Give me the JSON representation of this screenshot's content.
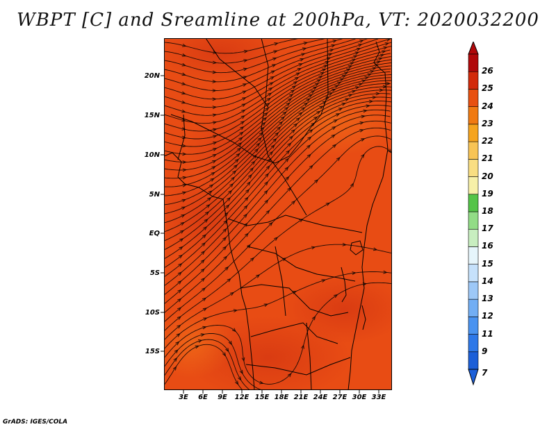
{
  "title": "WBPT [C] and Sreamline at 200hPa, VT: 2020032200",
  "credit": "GrADS: IGES/COLA",
  "map": {
    "field": "Wet-bulb potential temperature",
    "level": "200hPa",
    "valid_time": "2020032200",
    "lat_labels": [
      {
        "label": "20N",
        "value": 20
      },
      {
        "label": "15N",
        "value": 15
      },
      {
        "label": "10N",
        "value": 10
      },
      {
        "label": "5N",
        "value": 5
      },
      {
        "label": "EQ",
        "value": 0
      },
      {
        "label": "5S",
        "value": -5
      },
      {
        "label": "10S",
        "value": -10
      },
      {
        "label": "15S",
        "value": -15
      }
    ],
    "lon_labels": [
      {
        "label": "3E",
        "value": 3
      },
      {
        "label": "6E",
        "value": 6
      },
      {
        "label": "9E",
        "value": 9
      },
      {
        "label": "12E",
        "value": 12
      },
      {
        "label": "15E",
        "value": 15
      },
      {
        "label": "18E",
        "value": 18
      },
      {
        "label": "21E",
        "value": 21
      },
      {
        "label": "24E",
        "value": 24
      },
      {
        "label": "27E",
        "value": 27
      },
      {
        "label": "30E",
        "value": 30
      },
      {
        "label": "33E",
        "value": 33
      }
    ],
    "lat_range": [
      -20,
      24.5
    ],
    "lon_range": [
      0,
      35
    ]
  },
  "colorbar": {
    "labels": [
      "7",
      "9",
      "11",
      "12",
      "13",
      "14",
      "15",
      "16",
      "17",
      "18",
      "19",
      "20",
      "21",
      "22",
      "23",
      "24",
      "25",
      "26"
    ],
    "colors": [
      "#1c5fd8",
      "#2e78e8",
      "#4a93f0",
      "#72aef4",
      "#9dc8f7",
      "#c6e1fb",
      "#e6f5fb",
      "#c8eec0",
      "#92dc86",
      "#54c448",
      "#f7f0a8",
      "#f9de82",
      "#f8c455",
      "#f5a41e",
      "#f07a12",
      "#e85010",
      "#d22a0a",
      "#b0080a"
    ]
  }
}
